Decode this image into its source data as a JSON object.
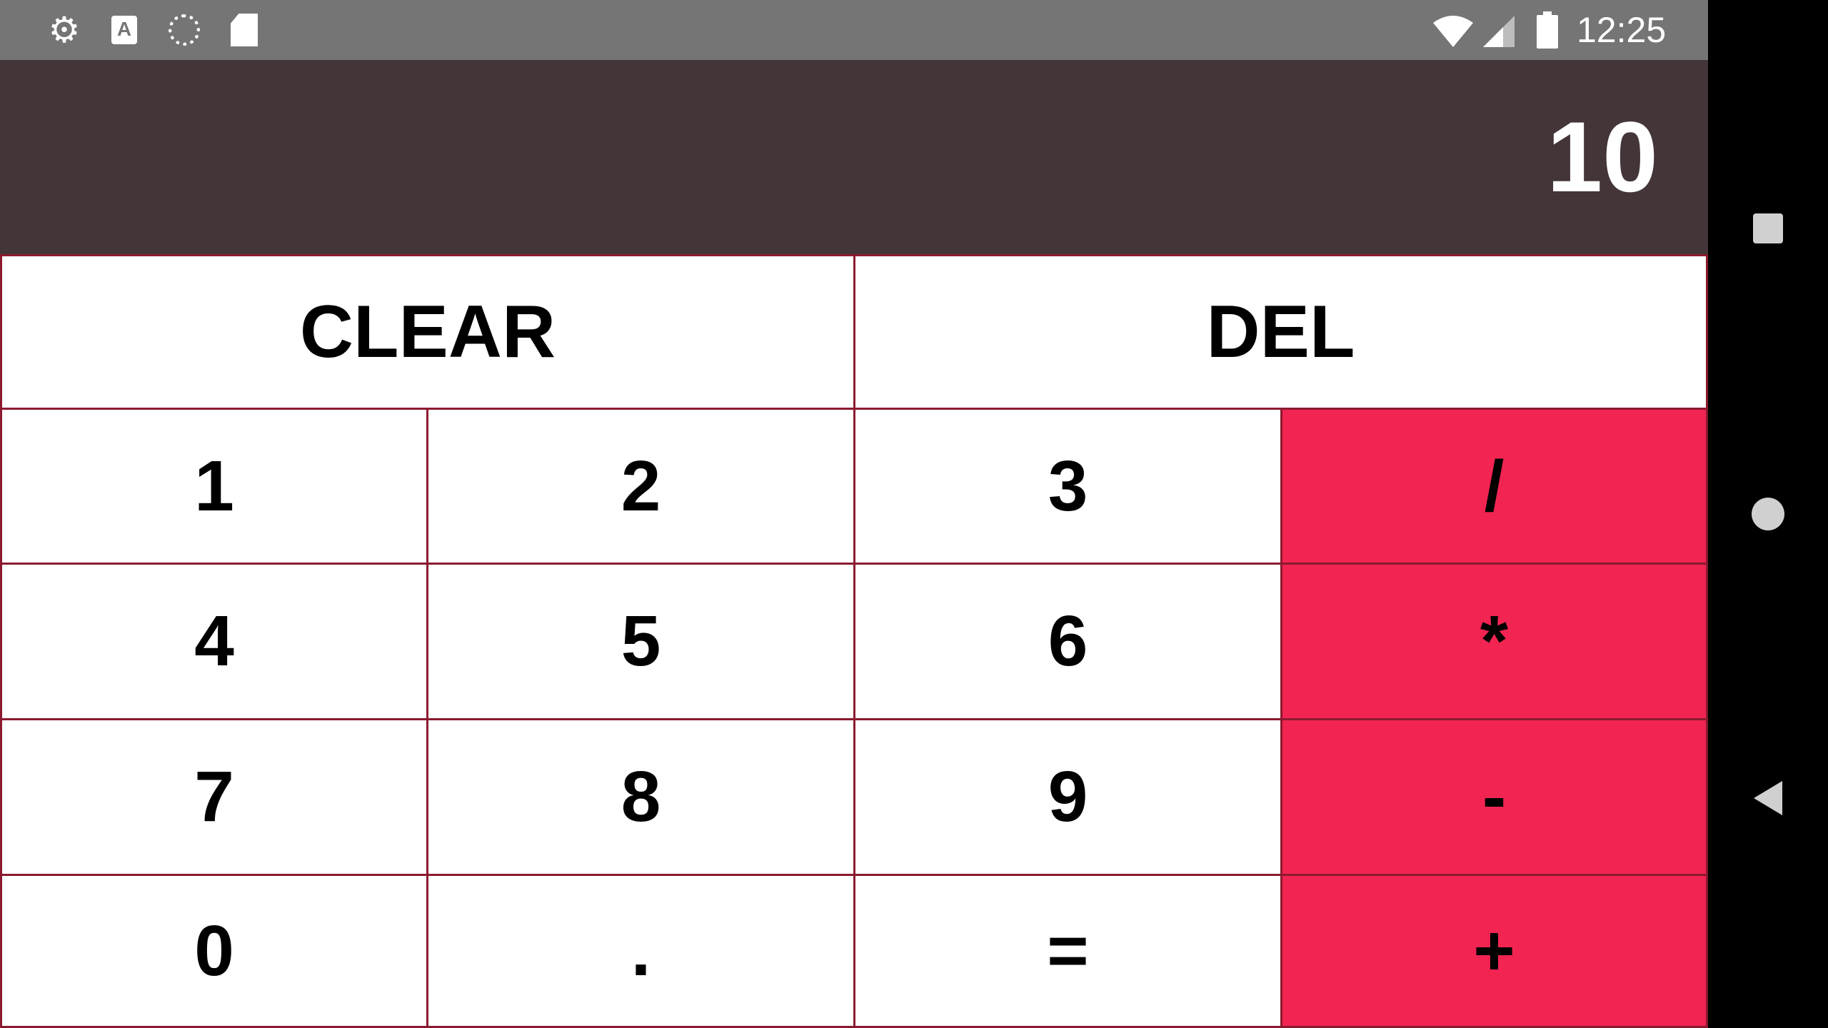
{
  "status_bar": {
    "time": "12:25",
    "left_icons": [
      "gear-icon",
      "keyboard-a-icon",
      "sync-icon",
      "sd-card-icon"
    ],
    "right_icons": [
      "wifi-icon",
      "cell-signal-icon",
      "battery-icon"
    ]
  },
  "display": {
    "value": "10"
  },
  "keys": {
    "clear": "CLEAR",
    "del": "DEL",
    "k1": "1",
    "k2": "2",
    "k3": "3",
    "divide": "/",
    "k4": "4",
    "k5": "5",
    "k6": "6",
    "multiply": "*",
    "k7": "7",
    "k8": "8",
    "k9": "9",
    "minus": "-",
    "k0": "0",
    "dot": ".",
    "equals": "=",
    "plus": "+"
  },
  "colors": {
    "status_bar_bg": "#757575",
    "display_bg": "#433538",
    "key_bg": "#ffffff",
    "operator_bg": "#f22452",
    "grid_line": "#8b1a30",
    "nav_bg": "#000000"
  },
  "nav_bar": {
    "buttons": [
      "recents-square-icon",
      "home-circle-icon",
      "back-triangle-icon"
    ]
  }
}
